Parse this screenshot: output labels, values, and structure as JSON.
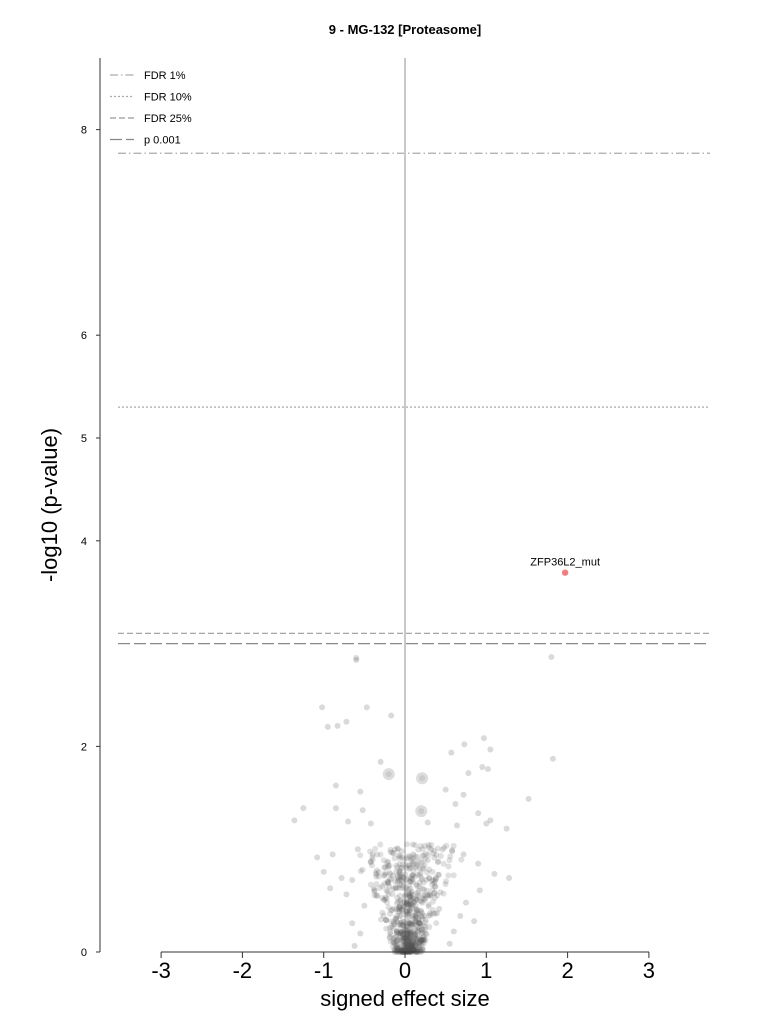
{
  "chart_data": {
    "type": "scatter",
    "title": "9 - MG-132 [Proteasome]",
    "xlabel": "signed effect size",
    "ylabel": "-log10 (p-value)",
    "xlim": [
      -3.7,
      3.7
    ],
    "ylim": [
      0,
      8.7
    ],
    "x_ticks": [
      -3,
      -2,
      -1,
      0,
      1,
      2,
      3
    ],
    "x_tick_labels": [
      "-3",
      "-2",
      "-1",
      "0",
      "1",
      "2",
      "3"
    ],
    "y_ticks": [
      0,
      2,
      4,
      5,
      6,
      8
    ],
    "y_tick_labels": [
      "0",
      "2",
      "4",
      "5",
      "6",
      "8"
    ],
    "grid": false,
    "legend_position": "top-left",
    "zero_line_color": "#c8c8c8",
    "point_color": "#555555",
    "highlight_color": "#f08080",
    "thresholds": [
      {
        "name": "FDR 1%",
        "y": 7.77,
        "style": "dashdot"
      },
      {
        "name": "FDR 10%",
        "y": 5.3,
        "style": "dotted"
      },
      {
        "name": "FDR 25%",
        "y": 3.1,
        "style": "dashed"
      },
      {
        "name": "p 0.001",
        "y": 3.0,
        "style": "longdash"
      }
    ],
    "highlighted": [
      {
        "label": "ZFP36L2_mut",
        "x": 1.97,
        "y": 3.69
      }
    ],
    "points": [
      [
        -0.6,
        2.86
      ],
      [
        -0.6,
        2.84
      ],
      [
        1.8,
        2.87
      ],
      [
        -1.02,
        2.38
      ],
      [
        -0.47,
        2.38
      ],
      [
        -0.95,
        2.19
      ],
      [
        -0.83,
        2.2
      ],
      [
        -0.72,
        2.24
      ],
      [
        -0.17,
        2.3
      ],
      [
        0.57,
        1.94
      ],
      [
        0.73,
        2.02
      ],
      [
        0.97,
        2.08
      ],
      [
        1.05,
        1.97
      ],
      [
        1.82,
        1.88
      ],
      [
        -0.3,
        1.85
      ],
      [
        -0.2,
        1.73
      ],
      [
        0.21,
        1.69
      ],
      [
        0.78,
        1.74
      ],
      [
        0.95,
        1.8
      ],
      [
        1.02,
        1.78
      ],
      [
        -0.85,
        1.62
      ],
      [
        -0.55,
        1.56
      ],
      [
        0.5,
        1.58
      ],
      [
        0.72,
        1.53
      ],
      [
        0.62,
        1.44
      ],
      [
        1.52,
        1.49
      ],
      [
        -1.25,
        1.4
      ],
      [
        -0.85,
        1.4
      ],
      [
        -0.52,
        1.38
      ],
      [
        0.2,
        1.37
      ],
      [
        0.9,
        1.35
      ],
      [
        -1.36,
        1.28
      ],
      [
        -0.7,
        1.27
      ],
      [
        -0.42,
        1.25
      ],
      [
        0.28,
        1.26
      ],
      [
        0.64,
        1.23
      ],
      [
        1.0,
        1.25
      ],
      [
        1.05,
        1.28
      ],
      [
        1.25,
        1.2
      ],
      [
        -1.08,
        0.92
      ],
      [
        -0.89,
        0.95
      ],
      [
        -0.58,
        1.0
      ],
      [
        0.32,
        1.0
      ],
      [
        0.58,
        0.98
      ],
      [
        0.72,
        0.95
      ],
      [
        0.9,
        0.86
      ],
      [
        -1.0,
        0.78
      ],
      [
        -0.78,
        0.72
      ],
      [
        -0.65,
        0.7
      ],
      [
        1.1,
        0.76
      ],
      [
        1.28,
        0.72
      ],
      [
        -0.92,
        0.62
      ],
      [
        -0.72,
        0.56
      ],
      [
        0.92,
        0.6
      ],
      [
        -0.5,
        0.45
      ],
      [
        0.75,
        0.48
      ],
      [
        0.68,
        0.35
      ],
      [
        -0.65,
        0.28
      ],
      [
        0.85,
        0.3
      ],
      [
        -0.55,
        0.18
      ],
      [
        0.6,
        0.2
      ],
      [
        -0.62,
        0.06
      ],
      [
        0.55,
        0.08
      ],
      [
        0.15,
        0.84
      ],
      [
        -0.1,
        0.62
      ],
      [
        -0.35,
        0.55
      ],
      [
        0.1,
        0.95
      ],
      [
        -0.42,
        0.88
      ],
      [
        0.38,
        0.72
      ],
      [
        -0.25,
        0.75
      ],
      [
        0.25,
        0.52
      ],
      [
        0.42,
        0.42
      ]
    ],
    "large_points": [
      [
        -0.2,
        1.73
      ],
      [
        0.21,
        1.69
      ],
      [
        0.2,
        1.37
      ],
      [
        0.17,
        0.86
      ]
    ]
  }
}
